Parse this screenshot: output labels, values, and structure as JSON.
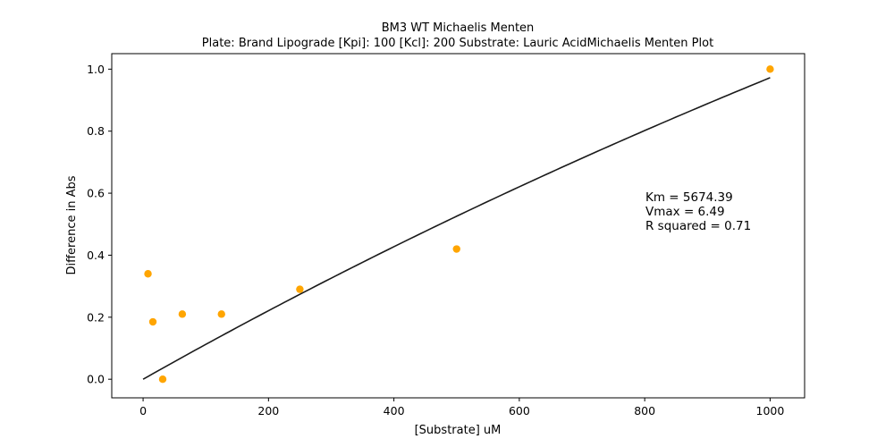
{
  "chart_data": {
    "type": "scatter",
    "title": "BM3 WT Michaelis Menten",
    "subtitle": "Plate: Brand Lipograde  [Kpi]: 100  [Kcl]: 200  Substrate: Lauric AcidMichaelis Menten Plot",
    "xlabel": "[Substrate] uM",
    "ylabel": "Difference in Abs",
    "xlim": [
      -50,
      1055
    ],
    "ylim": [
      -0.06,
      1.05
    ],
    "xticks": [
      0,
      200,
      400,
      600,
      800,
      1000
    ],
    "yticks": [
      0.0,
      0.2,
      0.4,
      0.6,
      0.8,
      1.0
    ],
    "xtick_labels": [
      "0",
      "200",
      "400",
      "600",
      "800",
      "1000"
    ],
    "ytick_labels": [
      "0.0",
      "0.2",
      "0.4",
      "0.6",
      "0.8",
      "1.0"
    ],
    "grid": false,
    "series": [
      {
        "type": "scatter",
        "color": "#ffa500",
        "x": [
          7.8,
          15.6,
          31.25,
          62.5,
          125,
          250,
          500,
          1000
        ],
        "y": [
          0.34,
          0.185,
          0.0,
          0.21,
          0.21,
          0.29,
          0.42,
          1.0
        ]
      },
      {
        "type": "line",
        "color": "#1a1a1a",
        "fit": {
          "model": "michaelis-menten",
          "km": 5674.39,
          "vmax": 6.49
        },
        "x_range": [
          0,
          1000
        ]
      }
    ],
    "annotations": [
      "Km = 5674.39",
      "Vmax = 6.49",
      "R squared = 0.71"
    ]
  }
}
